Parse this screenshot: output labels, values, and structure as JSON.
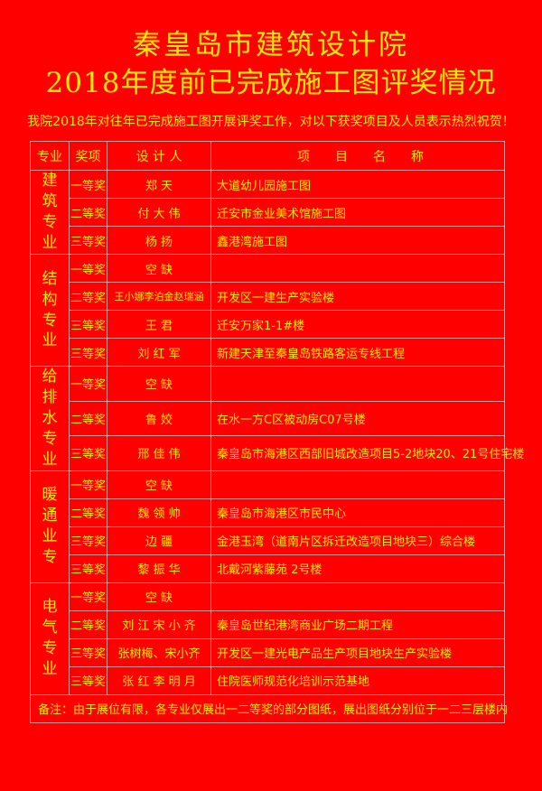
{
  "title_line1": "秦皇岛市建筑设计院",
  "title_line2": "2018年度前已完成施工图评奖情况",
  "subtitle": "我院2018年对往年已完成施工图开展评奖工作，对以下获奖项目及人员表示热烈祝贺！",
  "colors": {
    "background": "#ff0000",
    "text": "#ffe800",
    "border": "#ff9a9a"
  },
  "table": {
    "headers": [
      "专业",
      "奖项",
      "设 计 人",
      "项　　目　　名　　称"
    ],
    "groups": [
      {
        "discipline": [
          "建",
          "筑",
          "专",
          "业"
        ],
        "rows": [
          {
            "award": "一等奖",
            "designer": "郑 天",
            "project": "大道幼儿园施工图"
          },
          {
            "award": "二等奖",
            "designer": "付 大 伟",
            "project": "迁安市金业美术馆施工图"
          },
          {
            "award": "三等奖",
            "designer": "杨 扬",
            "project": "鑫港湾施工图"
          }
        ]
      },
      {
        "discipline": [
          "结",
          "构",
          "专",
          "业"
        ],
        "rows": [
          {
            "award": "一等奖",
            "designer": "空 缺",
            "project": ""
          },
          {
            "award": "二等奖",
            "designer": "王小娜李泊金赵瑞涵",
            "project": "开发区一建生产实验楼"
          },
          {
            "award": "三等奖",
            "designer": "王 君",
            "project": "迁安万家1-1#楼"
          },
          {
            "award": "三等奖",
            "designer": "刘 红 军",
            "project": "新建天津至秦皇岛铁路客运专线工程"
          }
        ]
      },
      {
        "discipline": [
          "给",
          "排",
          "水",
          "专",
          "业"
        ],
        "rows": [
          {
            "award": "一等奖",
            "designer": "空 缺",
            "project": ""
          },
          {
            "award": "二等奖",
            "designer": "鲁 姣",
            "project": "在水一方C区被动房C07号楼"
          },
          {
            "award": "三等奖",
            "designer": "邢 佳 伟",
            "project": "秦皇岛市海港区西部旧城改造项目5-2地块20、21号住宅楼"
          }
        ]
      },
      {
        "discipline": [
          "暖",
          "通",
          "业",
          "专"
        ],
        "rows": [
          {
            "award": "一等奖",
            "designer": "空 缺",
            "project": ""
          },
          {
            "award": "二等奖",
            "designer": "魏 领 帅",
            "project": "秦皇岛市海港区市民中心"
          },
          {
            "award": "三等奖",
            "designer": "边 疆",
            "project": "金港玉湾（道南片区拆迁改造项目地块三）综合楼"
          },
          {
            "award": "三等奖",
            "designer": "黎 振 华",
            "project": "北戴河紫藤苑 2号楼"
          }
        ]
      },
      {
        "discipline": [
          "电",
          "气",
          "专",
          "业"
        ],
        "rows": [
          {
            "award": "一等奖",
            "designer": "空 缺",
            "project": ""
          },
          {
            "award": "二等奖",
            "designer": "刘 江  宋 小 齐",
            "project": "秦皇岛世纪港湾商业广场二期工程"
          },
          {
            "award": "三等奖",
            "designer": "张树梅、宋小齐",
            "project": "开发区一建光电产品生产项目地块生产实验楼"
          },
          {
            "award": "三等奖",
            "designer": "张 红  李 明 月",
            "project": "住院医师规范化培训示范基地"
          }
        ]
      }
    ],
    "note": "备注：由于展位有限，各专业仅展出一二等奖的部分图纸，展出图纸分别位于一二三层楼内"
  }
}
